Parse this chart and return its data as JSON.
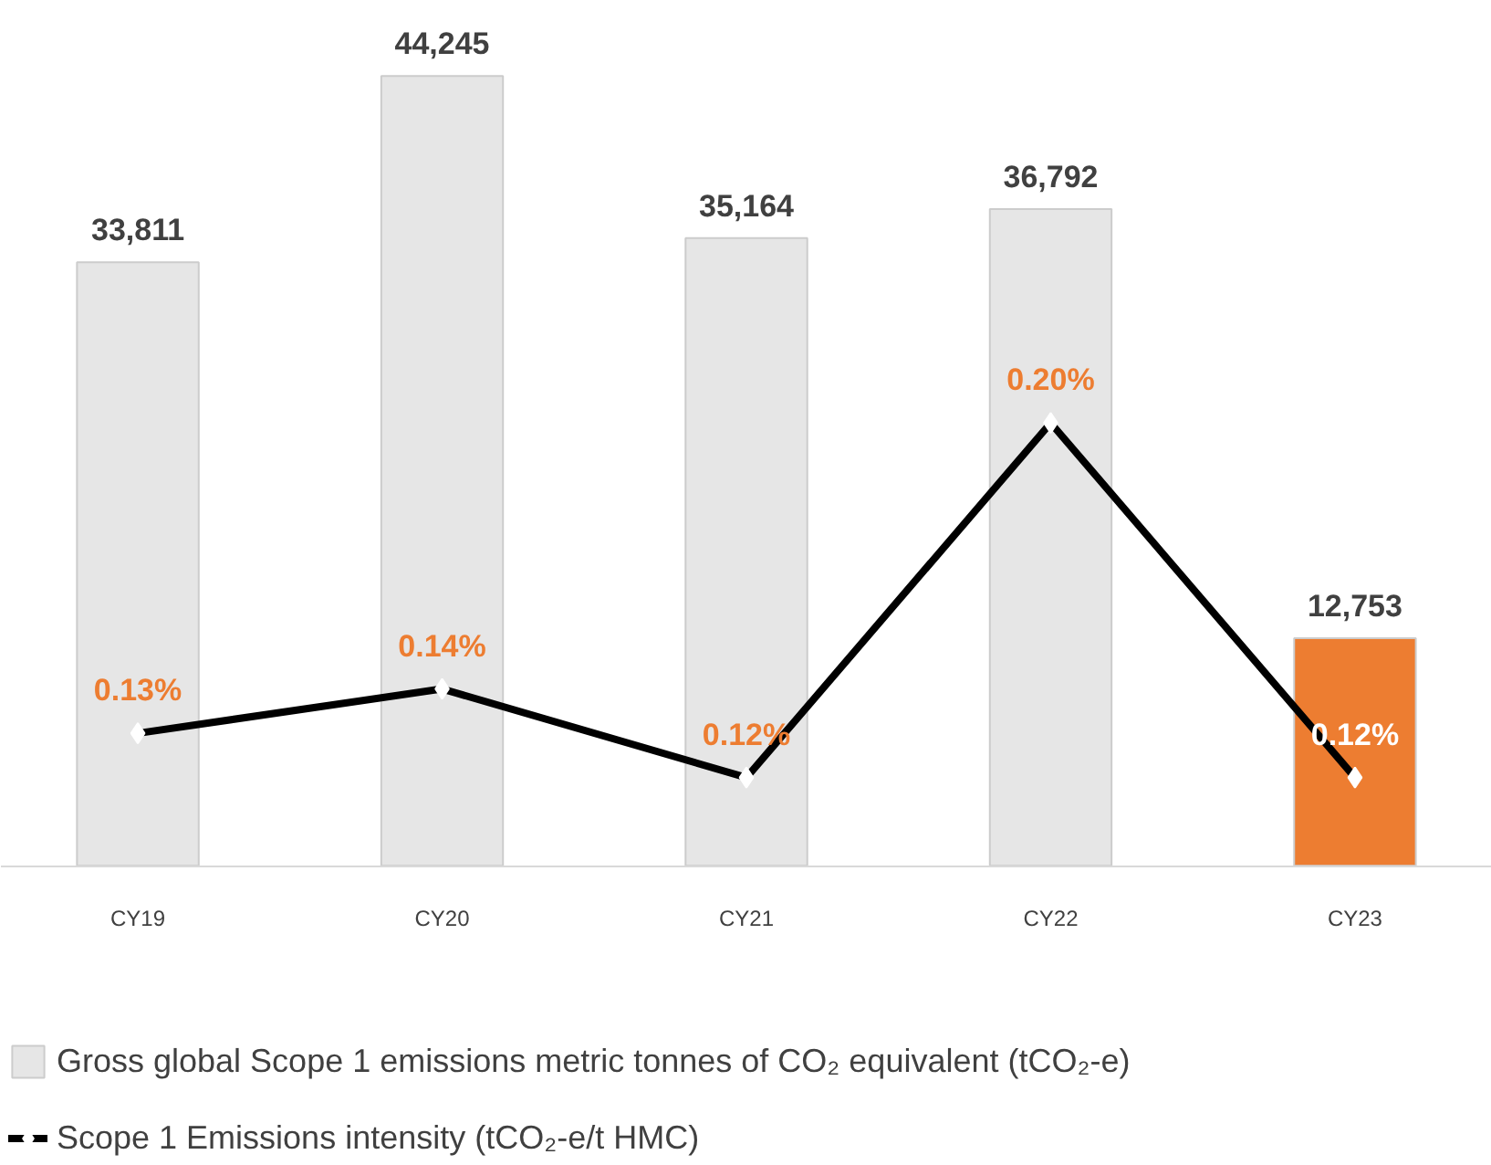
{
  "chart_data": {
    "type": "bar",
    "categories": [
      "CY19",
      "CY20",
      "CY21",
      "CY22",
      "CY23"
    ],
    "legend": "bottom",
    "marker": "diamond",
    "series": [
      {
        "name": "Gross global Scope 1 emissions metric tonnes of CO₂ equivalent (tCO₂-e)",
        "colors": [
          "#e6e6e6",
          "#e6e6e6",
          "#e6e6e6",
          "#e6e6e6",
          "#ed7d31"
        ],
        "values": [
          33811,
          44245,
          35164,
          36792,
          12753
        ],
        "value_labels": [
          "33,811",
          "44,245",
          "35,164",
          "36,792",
          "12,753"
        ]
      },
      {
        "name": "Scope 1 Emissions intensity (tCO₂-e/t HMC)",
        "type": "line",
        "axis": "y2",
        "color": "#000000",
        "values": [
          0.13,
          0.14,
          0.12,
          0.2,
          0.12
        ],
        "value_labels": [
          "0.13%",
          "0.14%",
          "0.12%",
          "0.20%",
          "0.12%"
        ]
      }
    ]
  }
}
